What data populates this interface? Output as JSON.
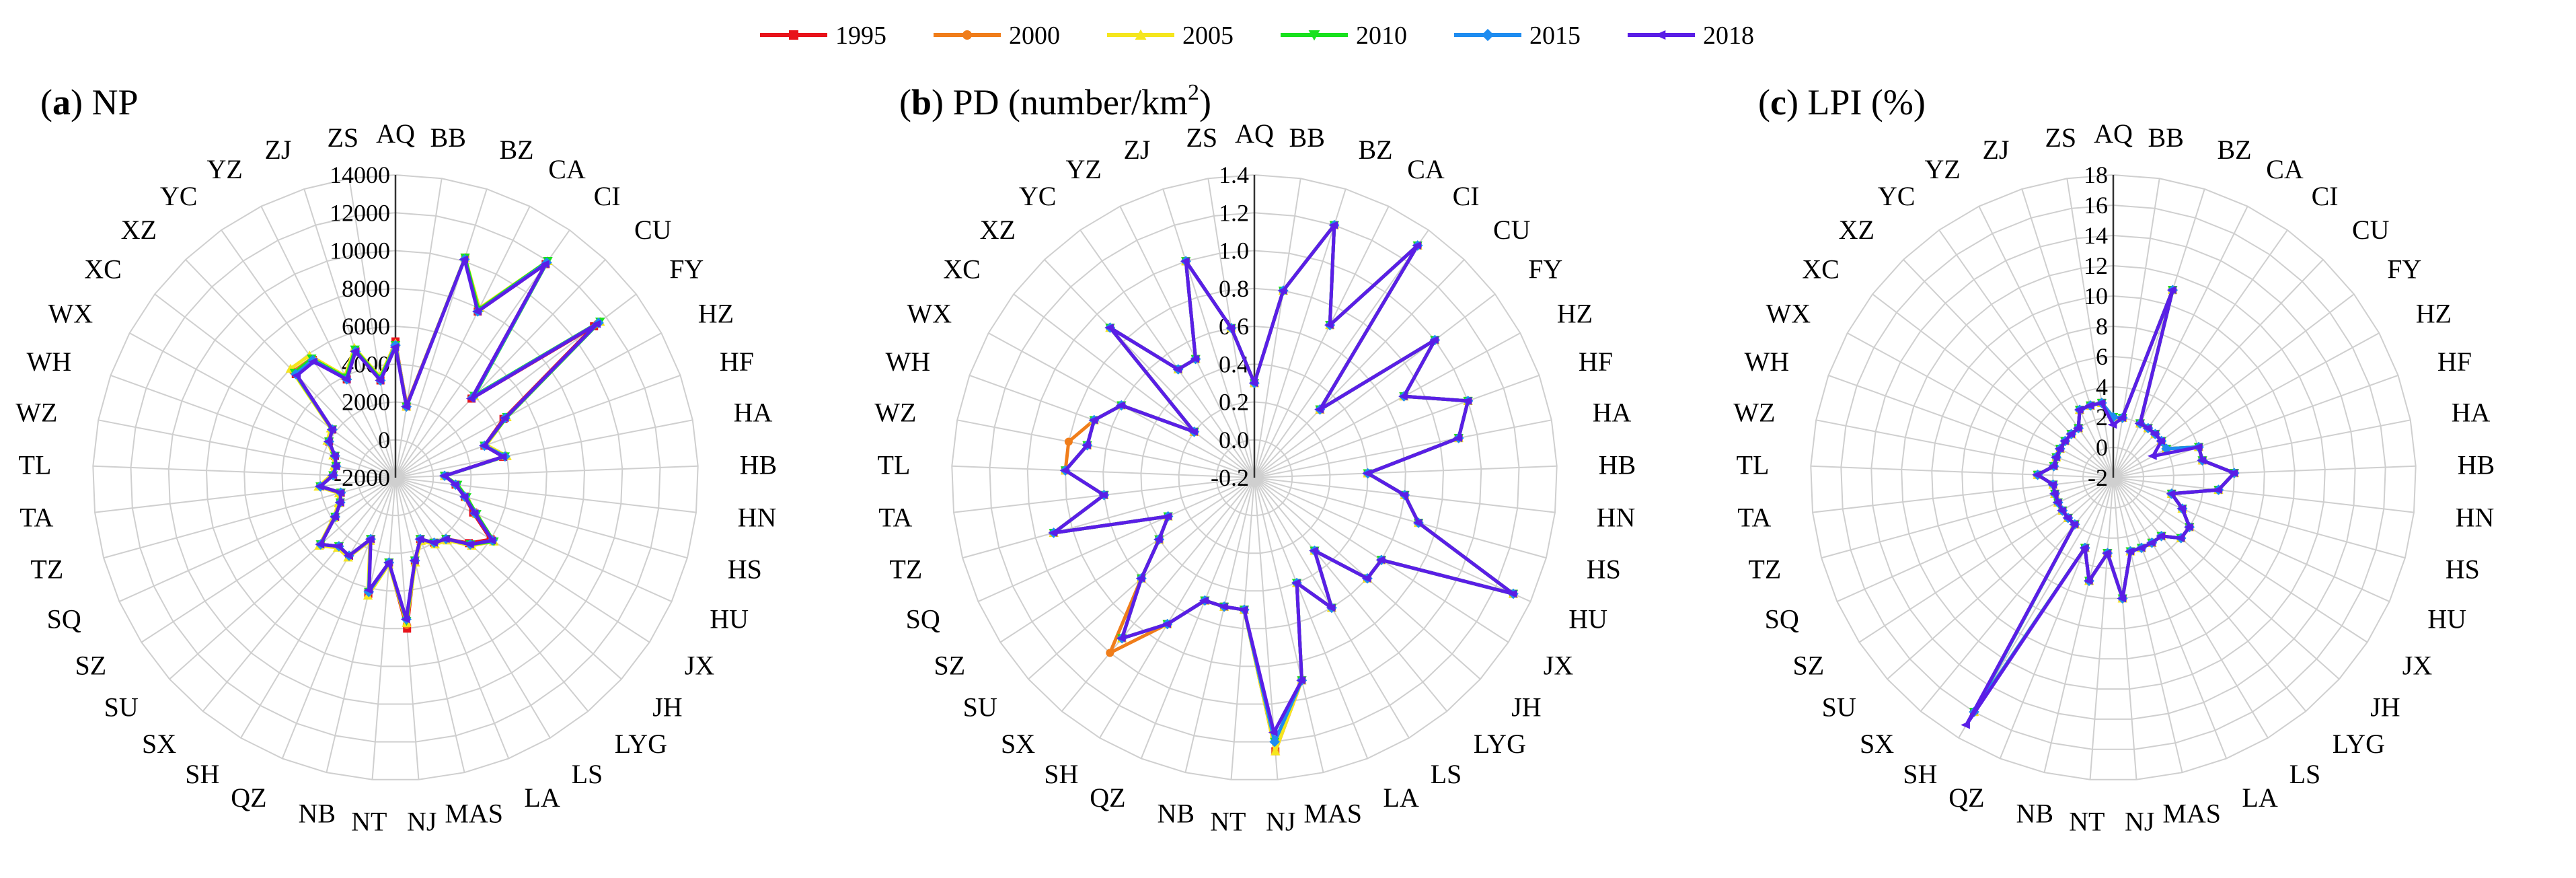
{
  "legend": {
    "items": [
      {
        "year": "1995",
        "color": "#e8131b",
        "marker": "square"
      },
      {
        "year": "2000",
        "color": "#f07d1a",
        "marker": "circle"
      },
      {
        "year": "2005",
        "color": "#f5e61e",
        "marker": "triangle"
      },
      {
        "year": "2010",
        "color": "#19e11e",
        "marker": "triangle-down"
      },
      {
        "year": "2015",
        "color": "#1e8cf0",
        "marker": "diamond"
      },
      {
        "year": "2018",
        "color": "#5a1ee6",
        "marker": "arrow-left"
      }
    ]
  },
  "chart_data": [
    {
      "type": "radar",
      "title_letter": "a",
      "title_rest": "NP",
      "rmin": -2000,
      "rmax": 14000,
      "step": 2000,
      "tick_labels": [
        "-2000",
        "0",
        "2000",
        "4000",
        "6000",
        "8000",
        "10000",
        "12000",
        "14000"
      ],
      "categories": [
        "AQ",
        "BB",
        "BZ",
        "CA",
        "CI",
        "CU",
        "FY",
        "HZ",
        "HF",
        "HA",
        "HB",
        "HN",
        "HS",
        "HU",
        "JX",
        "JH",
        "LYG",
        "LS",
        "LA",
        "MAS",
        "NJ",
        "NT",
        "NB",
        "QZ",
        "SH",
        "SX",
        "SU",
        "SZ",
        "SQ",
        "TZ",
        "TA",
        "TL",
        "WZ",
        "WH",
        "WX",
        "XC",
        "XZ",
        "YC",
        "YZ",
        "ZJ",
        "ZS"
      ],
      "series": [
        {
          "name": "1995",
          "values": [
            5200,
            1800,
            10200,
            7800,
            11800,
            3800,
            11200,
            4500,
            3000,
            3800,
            600,
            1200,
            1800,
            2500,
            4000,
            3200,
            2200,
            2000,
            1500,
            2500,
            6000,
            2500,
            4300,
            1500,
            2800,
            2700,
            3300,
            1800,
            1200,
            1000,
            2000,
            1300,
            1200,
            1400,
            2000,
            2200,
            5600,
            5600,
            3800,
            5000,
            3200
          ]
        },
        {
          "name": "2000",
          "values": [
            5000,
            1900,
            10200,
            7900,
            11900,
            3900,
            11400,
            4600,
            3000,
            3900,
            600,
            1200,
            1800,
            2600,
            4100,
            3300,
            2200,
            2000,
            1500,
            2500,
            5800,
            2500,
            4200,
            1500,
            2800,
            2700,
            3300,
            1800,
            1200,
            1000,
            2000,
            1300,
            1200,
            1400,
            2000,
            2200,
            5800,
            5700,
            3900,
            5100,
            3300
          ]
        },
        {
          "name": "2005",
          "values": [
            5100,
            1800,
            10200,
            8000,
            12000,
            4000,
            11600,
            4700,
            3100,
            4000,
            600,
            1300,
            1900,
            2700,
            4200,
            3400,
            2300,
            2100,
            1600,
            2600,
            5700,
            2600,
            4400,
            1600,
            2900,
            2800,
            3400,
            1900,
            1300,
            1100,
            2100,
            1400,
            1300,
            1500,
            2100,
            2300,
            6000,
            5900,
            4000,
            5200,
            3400
          ]
        },
        {
          "name": "2010",
          "values": [
            5000,
            1800,
            10200,
            7900,
            12000,
            4000,
            11600,
            4700,
            3000,
            3900,
            600,
            1300,
            1900,
            2700,
            4200,
            3300,
            2200,
            2000,
            1500,
            2500,
            5600,
            2500,
            4200,
            1500,
            2800,
            2700,
            3300,
            1800,
            1200,
            1000,
            2000,
            1300,
            1200,
            1400,
            2000,
            2200,
            5700,
            5700,
            3900,
            5100,
            3300
          ]
        },
        {
          "name": "2015",
          "values": [
            5000,
            1800,
            10100,
            7800,
            11900,
            3900,
            11500,
            4600,
            3000,
            3900,
            600,
            1200,
            1800,
            2600,
            4100,
            3300,
            2200,
            2000,
            1500,
            2500,
            5500,
            2500,
            4200,
            1500,
            2800,
            2700,
            3300,
            1800,
            1200,
            1000,
            2000,
            1300,
            1200,
            1400,
            2000,
            2200,
            5600,
            5600,
            3800,
            5000,
            3200
          ]
        },
        {
          "name": "2018",
          "values": [
            4900,
            1800,
            10100,
            7800,
            11800,
            3800,
            11400,
            4600,
            3000,
            3800,
            600,
            1200,
            1800,
            2600,
            4100,
            3300,
            2200,
            2000,
            1500,
            2500,
            5500,
            2500,
            4100,
            1500,
            2800,
            2700,
            3300,
            1800,
            1200,
            1000,
            2000,
            1300,
            1200,
            1400,
            2000,
            2200,
            5500,
            5500,
            3800,
            5000,
            3200
          ]
        }
      ]
    },
    {
      "type": "radar",
      "title_letter": "b",
      "title_rest": "PD (number/km",
      "title_sup": "2",
      "title_end": ")",
      "rmin": -0.2,
      "rmax": 1.4,
      "step": 0.2,
      "tick_labels": [
        "-0.2",
        "0.0",
        "0.2",
        "0.4",
        "0.6",
        "0.8",
        "1.0",
        "1.2",
        "1.4"
      ],
      "categories": [
        "AQ",
        "BB",
        "BZ",
        "CA",
        "CI",
        "CU",
        "FY",
        "HZ",
        "HF",
        "HA",
        "HB",
        "HN",
        "HS",
        "HU",
        "JX",
        "JH",
        "LYG",
        "LS",
        "LA",
        "MAS",
        "NJ",
        "NT",
        "NB",
        "QZ",
        "SH",
        "SX",
        "SU",
        "SZ",
        "SQ",
        "TZ",
        "TA",
        "TL",
        "WZ",
        "WH",
        "WX",
        "XC",
        "XZ",
        "YC",
        "YZ",
        "ZJ",
        "ZS"
      ],
      "series": [
        {
          "name": "1995",
          "values": [
            0.3,
            0.8,
            1.2,
            0.7,
            1.3,
            0.3,
            1.0,
            0.7,
            1.0,
            0.9,
            0.4,
            0.6,
            0.7,
            1.3,
            0.6,
            0.6,
            0.3,
            0.6,
            0.4,
            0.9,
            1.25,
            0.5,
            0.5,
            0.5,
            0.7,
            0.9,
            0.6,
            0.4,
            0.3,
            0.9,
            0.6,
            0.8,
            0.7,
            0.7,
            0.6,
            0.2,
            0.9,
            0.5,
            0.5,
            1.0,
            0.6
          ]
        },
        {
          "name": "2000",
          "values": [
            0.3,
            0.8,
            1.2,
            0.7,
            1.3,
            0.3,
            1.0,
            0.7,
            1.0,
            0.9,
            0.4,
            0.6,
            0.7,
            1.3,
            0.6,
            0.6,
            0.3,
            0.6,
            0.4,
            0.9,
            1.25,
            0.5,
            0.5,
            0.5,
            0.7,
            1.0,
            0.6,
            0.4,
            0.3,
            0.9,
            0.6,
            0.8,
            0.8,
            0.7,
            0.6,
            0.2,
            0.9,
            0.5,
            0.5,
            1.0,
            0.6
          ]
        },
        {
          "name": "2005",
          "values": [
            0.3,
            0.8,
            1.2,
            0.7,
            1.3,
            0.3,
            1.0,
            0.7,
            1.0,
            0.9,
            0.4,
            0.6,
            0.7,
            1.3,
            0.6,
            0.6,
            0.3,
            0.6,
            0.4,
            0.9,
            1.25,
            0.5,
            0.5,
            0.5,
            0.7,
            0.9,
            0.6,
            0.4,
            0.3,
            0.9,
            0.6,
            0.8,
            0.7,
            0.7,
            0.6,
            0.2,
            0.9,
            0.5,
            0.5,
            1.0,
            0.6
          ]
        },
        {
          "name": "2010",
          "values": [
            0.3,
            0.8,
            1.2,
            0.7,
            1.3,
            0.3,
            1.0,
            0.7,
            1.0,
            0.9,
            0.4,
            0.6,
            0.7,
            1.3,
            0.6,
            0.6,
            0.3,
            0.6,
            0.4,
            0.9,
            1.2,
            0.5,
            0.5,
            0.5,
            0.7,
            0.9,
            0.6,
            0.4,
            0.3,
            0.9,
            0.6,
            0.8,
            0.7,
            0.7,
            0.6,
            0.2,
            0.9,
            0.5,
            0.5,
            1.0,
            0.6
          ]
        },
        {
          "name": "2015",
          "values": [
            0.3,
            0.8,
            1.2,
            0.7,
            1.3,
            0.3,
            1.0,
            0.7,
            1.0,
            0.9,
            0.4,
            0.6,
            0.7,
            1.3,
            0.6,
            0.6,
            0.3,
            0.6,
            0.4,
            0.9,
            1.2,
            0.5,
            0.5,
            0.5,
            0.7,
            0.9,
            0.6,
            0.4,
            0.3,
            0.9,
            0.6,
            0.8,
            0.7,
            0.7,
            0.6,
            0.2,
            0.9,
            0.5,
            0.5,
            1.0,
            0.6
          ]
        },
        {
          "name": "2018",
          "values": [
            0.3,
            0.8,
            1.2,
            0.7,
            1.3,
            0.3,
            1.0,
            0.7,
            1.0,
            0.9,
            0.4,
            0.6,
            0.7,
            1.3,
            0.6,
            0.6,
            0.3,
            0.6,
            0.4,
            0.9,
            1.15,
            0.5,
            0.5,
            0.5,
            0.7,
            0.9,
            0.6,
            0.4,
            0.3,
            0.9,
            0.6,
            0.8,
            0.7,
            0.7,
            0.6,
            0.2,
            0.9,
            0.5,
            0.5,
            1.0,
            0.6
          ]
        }
      ]
    },
    {
      "type": "radar",
      "title_letter": "c",
      "title_rest": "LPI (%)",
      "rmin": -2,
      "rmax": 18,
      "step": 2,
      "tick_labels": [
        "-2",
        "0",
        "2",
        "4",
        "6",
        "8",
        "10",
        "12",
        "14",
        "16",
        "18"
      ],
      "categories": [
        "AQ",
        "BB",
        "BZ",
        "CA",
        "CI",
        "CU",
        "FY",
        "HZ",
        "HF",
        "HA",
        "HB",
        "HN",
        "HS",
        "HU",
        "JX",
        "JH",
        "LYG",
        "LS",
        "LA",
        "MAS",
        "NJ",
        "NT",
        "NB",
        "QZ",
        "SH",
        "SX",
        "SU",
        "SZ",
        "SQ",
        "TZ",
        "TA",
        "TL",
        "WZ",
        "WH",
        "WX",
        "XC",
        "XZ",
        "YC",
        "YZ",
        "ZJ",
        "ZS"
      ],
      "series": [
        {
          "name": "1995",
          "values": [
            2,
            2,
            11,
            2,
            2,
            2,
            2,
            2,
            4,
            4,
            6,
            5,
            2,
            3,
            4,
            4,
            3,
            3,
            3,
            3,
            6,
            3,
            5,
            3,
            16,
            2,
            2,
            2,
            2,
            2,
            2,
            3,
            2,
            2,
            2,
            2,
            2,
            2,
            3,
            3,
            3
          ]
        },
        {
          "name": "2000",
          "values": [
            2,
            2,
            11,
            2,
            2,
            2,
            2,
            2,
            4,
            4,
            6,
            5,
            2,
            3,
            4,
            4,
            3,
            3,
            3,
            3,
            6,
            3,
            5,
            3,
            16,
            2,
            2,
            2,
            2,
            2,
            2,
            3,
            2,
            2,
            2,
            2,
            2,
            2,
            3,
            3,
            3
          ]
        },
        {
          "name": "2005",
          "values": [
            2,
            2,
            11,
            2,
            2,
            2,
            2,
            2,
            4,
            4,
            6,
            5,
            2,
            3,
            4,
            4,
            3,
            3,
            3,
            3,
            6,
            3,
            5,
            3,
            16,
            2,
            2,
            2,
            2,
            2,
            2,
            3,
            2,
            2,
            2,
            2,
            2,
            2,
            3,
            3,
            3
          ]
        },
        {
          "name": "2010",
          "values": [
            2,
            2,
            11,
            2,
            2,
            2,
            2,
            2,
            4,
            4,
            6,
            5,
            2,
            3,
            4,
            4,
            3,
            3,
            3,
            3,
            6,
            3,
            5,
            3,
            16,
            2,
            2,
            2,
            2,
            2,
            2,
            3,
            2,
            2,
            2,
            2,
            2,
            2,
            3,
            3,
            3
          ]
        },
        {
          "name": "2015",
          "values": [
            2,
            2,
            11,
            2,
            2,
            2,
            2,
            2,
            4,
            4,
            6,
            5,
            2,
            3,
            4,
            4,
            3,
            3,
            3,
            3,
            6,
            3,
            5,
            3,
            16,
            2,
            2,
            2,
            2,
            2,
            2,
            3,
            2,
            2,
            2,
            2,
            2,
            2,
            3,
            3,
            3
          ]
        },
        {
          "name": "2018",
          "values": [
            1.5,
            2,
            11,
            2,
            2,
            2,
            2,
            1,
            4,
            4,
            6,
            5,
            2,
            3,
            4,
            4,
            3,
            3,
            3,
            3,
            6,
            3,
            5,
            3,
            17,
            2,
            2,
            2,
            2,
            2,
            2,
            3,
            2,
            2,
            2,
            2,
            2,
            2,
            3,
            3,
            3
          ]
        }
      ]
    }
  ]
}
